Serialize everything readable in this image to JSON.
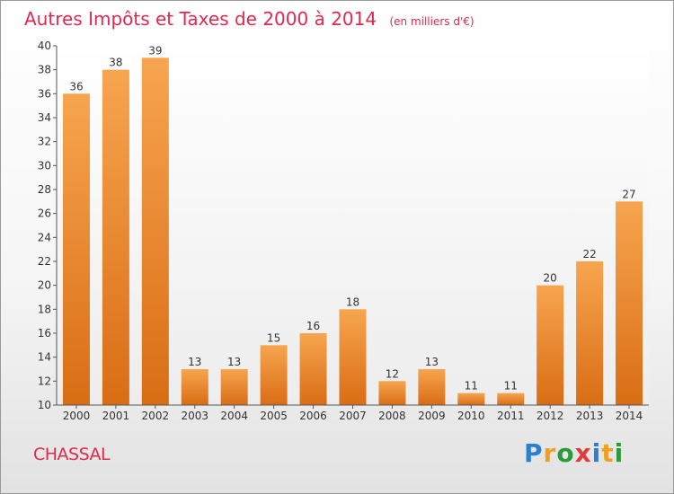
{
  "chart_data": {
    "type": "bar",
    "title": "Autres Impôts et Taxes de 2000 à 2014",
    "subtitle": "(en milliers d'€)",
    "categories": [
      "2000",
      "2001",
      "2002",
      "2003",
      "2004",
      "2005",
      "2006",
      "2007",
      "2008",
      "2009",
      "2010",
      "2011",
      "2012",
      "2013",
      "2014"
    ],
    "values": [
      36,
      38,
      39,
      13,
      13,
      15,
      16,
      18,
      12,
      13,
      11,
      11,
      20,
      22,
      27
    ],
    "ylim": [
      10,
      40
    ],
    "yticks": [
      10,
      12,
      14,
      16,
      18,
      20,
      22,
      24,
      26,
      28,
      30,
      32,
      34,
      36,
      38,
      40
    ],
    "grid": false,
    "bar_color": "#f08c2c",
    "xlabel": "",
    "ylabel": ""
  },
  "footer": {
    "town": "CHASSAL",
    "logo_letters": [
      "P",
      "r",
      "o",
      "x",
      "i",
      "t",
      "i"
    ],
    "logo_colors": [
      "#2a7fd0",
      "#f0a020",
      "#2a9a3a",
      "#e23a3a",
      "#2a7fd0",
      "#f0a020",
      "#2a9a3a"
    ]
  }
}
